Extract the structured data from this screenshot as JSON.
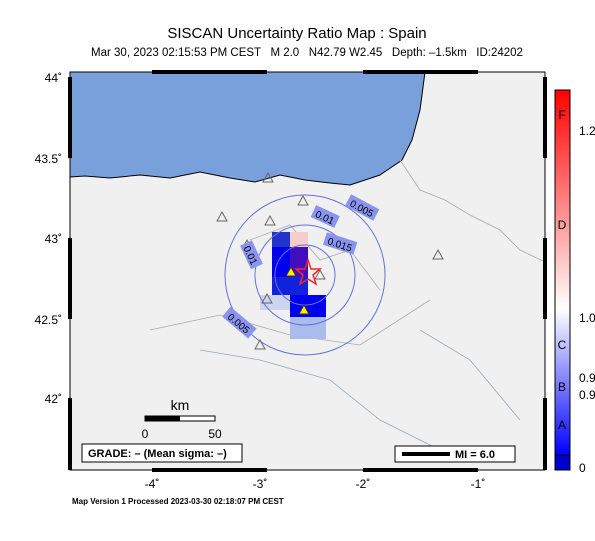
{
  "header": {
    "title": "SISCAN Uncertainty Ratio Map : Spain",
    "subtitle": "Mar 30, 2023 02:15:53 PM CEST   M 2.0   N42.79 W2.45   Depth: –1.5km   ID:24202"
  },
  "map": {
    "lat_ticks": [
      "44˚",
      "43.5˚",
      "43˚",
      "42.5˚",
      "42˚"
    ],
    "lon_ticks": [
      "-4˚",
      "-3˚",
      "-2˚",
      "-1˚"
    ],
    "contour_labels": [
      "0.005",
      "0.01",
      "0.015",
      "0.01",
      "0.005"
    ],
    "scale": {
      "unit": "km",
      "start": "0",
      "end": "50"
    },
    "grade": "GRADE: – (Mean sigma: –)",
    "intensity": "MI = 6.0"
  },
  "colorbar": {
    "grades": [
      "F",
      "D",
      "C",
      "B",
      "A"
    ],
    "labels": [
      "1.2",
      "1.0",
      "0.9",
      "0.9",
      "0"
    ]
  },
  "footer": "Map Version 1 Processed 2023-03-30 02:18:07 PM CEST"
}
